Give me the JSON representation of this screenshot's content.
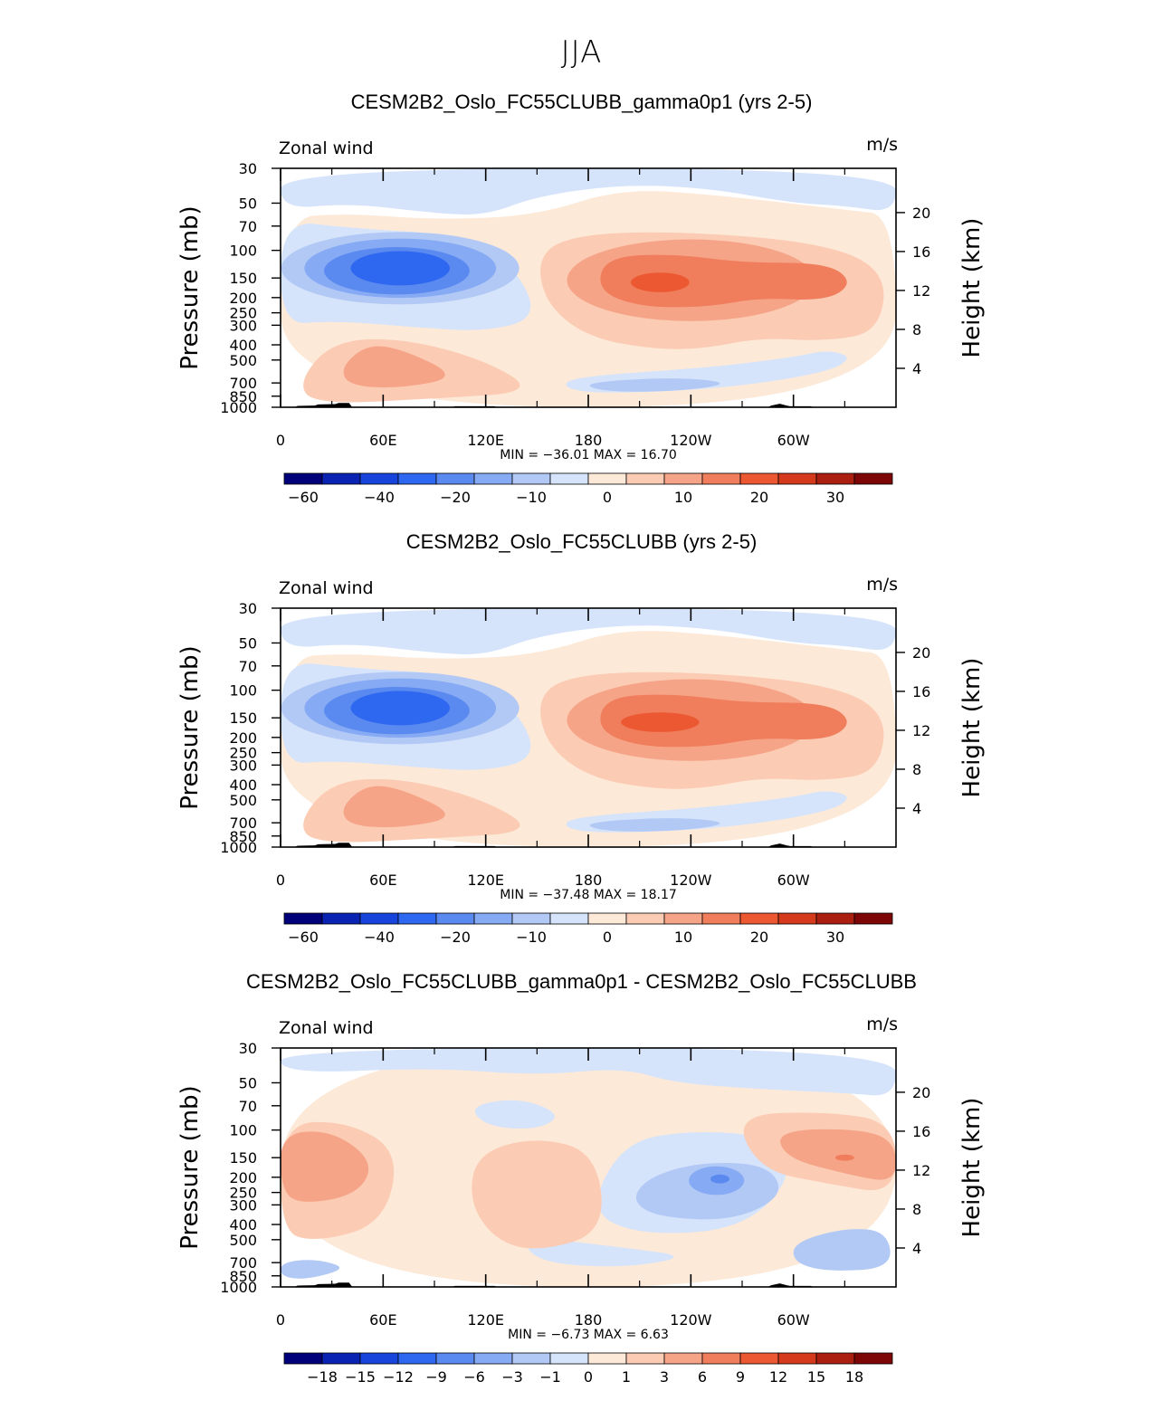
{
  "page_title": "JJA",
  "colors": {
    "main": [
      "#00007a",
      "#0a23b2",
      "#1745dc",
      "#2f68f0",
      "#5a8aef",
      "#86aaf3",
      "#b2c9f6",
      "#d6e4fb",
      "#fde9d8",
      "#fbcbb4",
      "#f6a487",
      "#f07e5c",
      "#ec5832",
      "#d43a1b",
      "#aa1f0f",
      "#7d0606"
    ],
    "diff": [
      "#00007a",
      "#0a23b2",
      "#1745dc",
      "#2f68f0",
      "#5a8aef",
      "#86aaf3",
      "#b2c9f6",
      "#d6e4fb",
      "#fde9d8",
      "#fbcbb4",
      "#f6a487",
      "#f07e5c",
      "#ec5832",
      "#d43a1b",
      "#aa1f0f",
      "#7d0606"
    ]
  },
  "chart_data": [
    {
      "type": "heatmap",
      "title": "CESM2B2_Oslo_FC55CLUBB_gamma0p1 (yrs 2-5)",
      "left_label": "Zonal wind",
      "units": "m/s",
      "ylabel": "Pressure (mb)",
      "y2label": "Height (km)",
      "x_ticks": [
        "0",
        "60E",
        "120E",
        "180",
        "120W",
        "60W"
      ],
      "y_ticks": [
        "30",
        "50",
        "70",
        "100",
        "150",
        "200",
        "250",
        "300",
        "400",
        "500",
        "700",
        "850",
        "1000"
      ],
      "y2_ticks": [
        "20",
        "16",
        "12",
        "8",
        "4"
      ],
      "stats": "MIN = −36.01   MAX =  16.70",
      "min": -36.01,
      "max": 16.7,
      "colorbar_labels": [
        "−60",
        "−40",
        "−20",
        "−10",
        "0",
        "10",
        "20",
        "30"
      ],
      "contour_levels": [
        -70,
        -65,
        -60,
        -50,
        -40,
        -30,
        -20,
        -15,
        -10,
        -5,
        0,
        5,
        10,
        15,
        20,
        25,
        30
      ]
    },
    {
      "type": "heatmap",
      "title": "CESM2B2_Oslo_FC55CLUBB (yrs 2-5)",
      "left_label": "Zonal wind",
      "units": "m/s",
      "ylabel": "Pressure (mb)",
      "y2label": "Height (km)",
      "x_ticks": [
        "0",
        "60E",
        "120E",
        "180",
        "120W",
        "60W"
      ],
      "y_ticks": [
        "30",
        "50",
        "70",
        "100",
        "150",
        "200",
        "250",
        "300",
        "400",
        "500",
        "700",
        "850",
        "1000"
      ],
      "y2_ticks": [
        "20",
        "16",
        "12",
        "8",
        "4"
      ],
      "stats": "MIN = −37.48   MAX =  18.17",
      "min": -37.48,
      "max": 18.17,
      "colorbar_labels": [
        "−60",
        "−40",
        "−20",
        "−10",
        "0",
        "10",
        "20",
        "30"
      ],
      "contour_levels": [
        -70,
        -65,
        -60,
        -50,
        -40,
        -30,
        -20,
        -15,
        -10,
        -5,
        0,
        5,
        10,
        15,
        20,
        25,
        30
      ]
    },
    {
      "type": "heatmap",
      "title": "CESM2B2_Oslo_FC55CLUBB_gamma0p1 - CESM2B2_Oslo_FC55CLUBB",
      "left_label": "Zonal wind",
      "units": "m/s",
      "ylabel": "Pressure (mb)",
      "y2label": "Height (km)",
      "x_ticks": [
        "0",
        "60E",
        "120E",
        "180",
        "120W",
        "60W"
      ],
      "y_ticks": [
        "30",
        "50",
        "70",
        "100",
        "150",
        "200",
        "250",
        "300",
        "400",
        "500",
        "700",
        "850",
        "1000"
      ],
      "y2_ticks": [
        "20",
        "16",
        "12",
        "8",
        "4"
      ],
      "stats": "MIN =   −6.73   MAX =    6.63",
      "min": -6.73,
      "max": 6.63,
      "colorbar_labels": [
        "−18",
        "−15",
        "−12",
        "−9",
        "−6",
        "−3",
        "−1",
        "0",
        "1",
        "3",
        "6",
        "9",
        "12",
        "15",
        "18"
      ],
      "contour_levels": [
        -21,
        -18,
        -15,
        -12,
        -9,
        -6,
        -3,
        -1,
        0,
        1,
        3,
        6,
        9,
        12,
        15,
        18,
        21
      ]
    }
  ]
}
